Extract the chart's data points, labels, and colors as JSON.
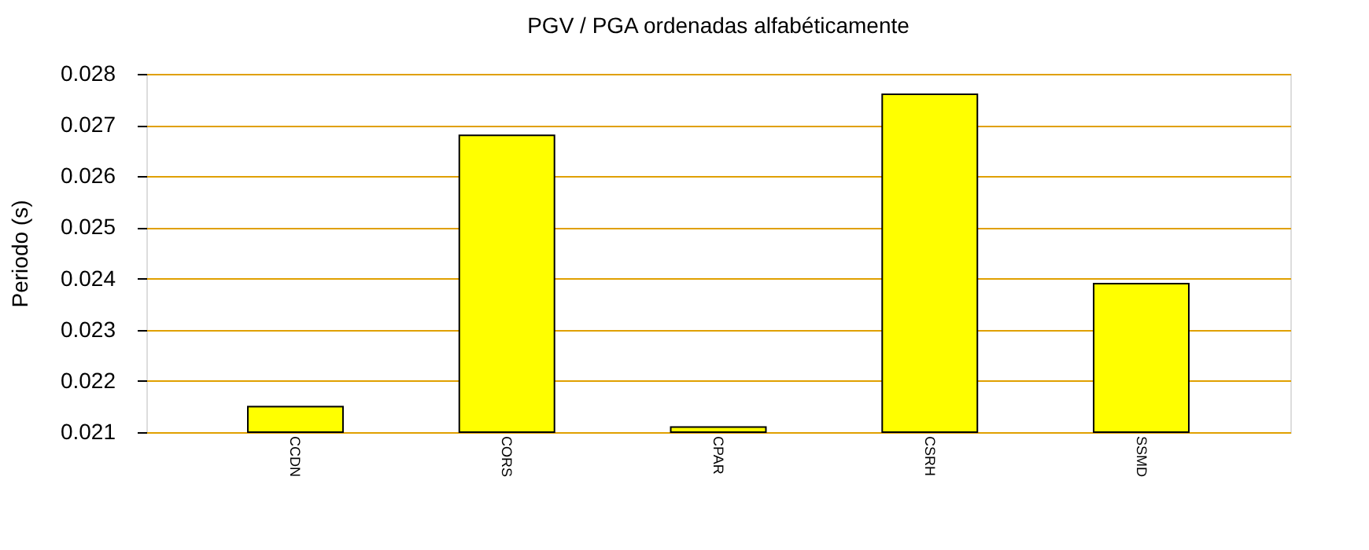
{
  "chart_data": {
    "type": "bar",
    "title": "PGV / PGA ordenadas alfabéticamente",
    "ylabel": "Periodo (s)",
    "categories": [
      "CCDN",
      "CORS",
      "CPAR",
      "CSRH",
      "SSMD"
    ],
    "values": [
      0.0215,
      0.0268,
      0.0211,
      0.0276,
      0.0239
    ],
    "color": "#ffff00",
    "ylim": [
      0.021,
      0.028
    ],
    "yticks": [
      0.021,
      0.022,
      0.023,
      0.024,
      0.025,
      0.026,
      0.027,
      0.028
    ],
    "grid": "y"
  }
}
